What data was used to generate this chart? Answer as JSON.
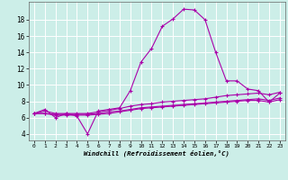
{
  "xlabel": "Windchill (Refroidissement éolien,°C)",
  "background_color": "#cceee8",
  "grid_color": "#ffffff",
  "line_color": "#aa00aa",
  "x_ticks": [
    0,
    1,
    2,
    3,
    4,
    5,
    6,
    7,
    8,
    9,
    10,
    11,
    12,
    13,
    14,
    15,
    16,
    17,
    18,
    19,
    20,
    21,
    22,
    23
  ],
  "y_ticks": [
    4,
    6,
    8,
    10,
    12,
    14,
    16,
    18
  ],
  "xlim": [
    -0.5,
    23.5
  ],
  "ylim": [
    3.2,
    20.2
  ],
  "series": [
    [
      6.5,
      7.0,
      6.0,
      6.5,
      6.2,
      4.0,
      6.8,
      7.0,
      7.2,
      9.3,
      12.8,
      14.5,
      17.2,
      18.1,
      19.3,
      19.2,
      18.0,
      14.0,
      10.5,
      10.5,
      9.5,
      9.3,
      7.9,
      9.0
    ],
    [
      6.5,
      6.8,
      6.5,
      6.5,
      6.5,
      6.5,
      6.7,
      6.9,
      7.1,
      7.4,
      7.6,
      7.7,
      7.9,
      8.0,
      8.1,
      8.2,
      8.3,
      8.5,
      8.7,
      8.8,
      8.9,
      9.0,
      8.8,
      9.1
    ],
    [
      6.5,
      6.5,
      6.4,
      6.4,
      6.4,
      6.4,
      6.5,
      6.7,
      6.8,
      7.0,
      7.2,
      7.3,
      7.4,
      7.5,
      7.6,
      7.7,
      7.8,
      7.9,
      8.0,
      8.1,
      8.2,
      8.3,
      8.1,
      8.4
    ],
    [
      6.5,
      6.5,
      6.3,
      6.3,
      6.3,
      6.3,
      6.4,
      6.5,
      6.7,
      6.9,
      7.1,
      7.2,
      7.3,
      7.4,
      7.5,
      7.6,
      7.7,
      7.8,
      7.9,
      8.0,
      8.1,
      8.1,
      7.9,
      8.2
    ]
  ]
}
